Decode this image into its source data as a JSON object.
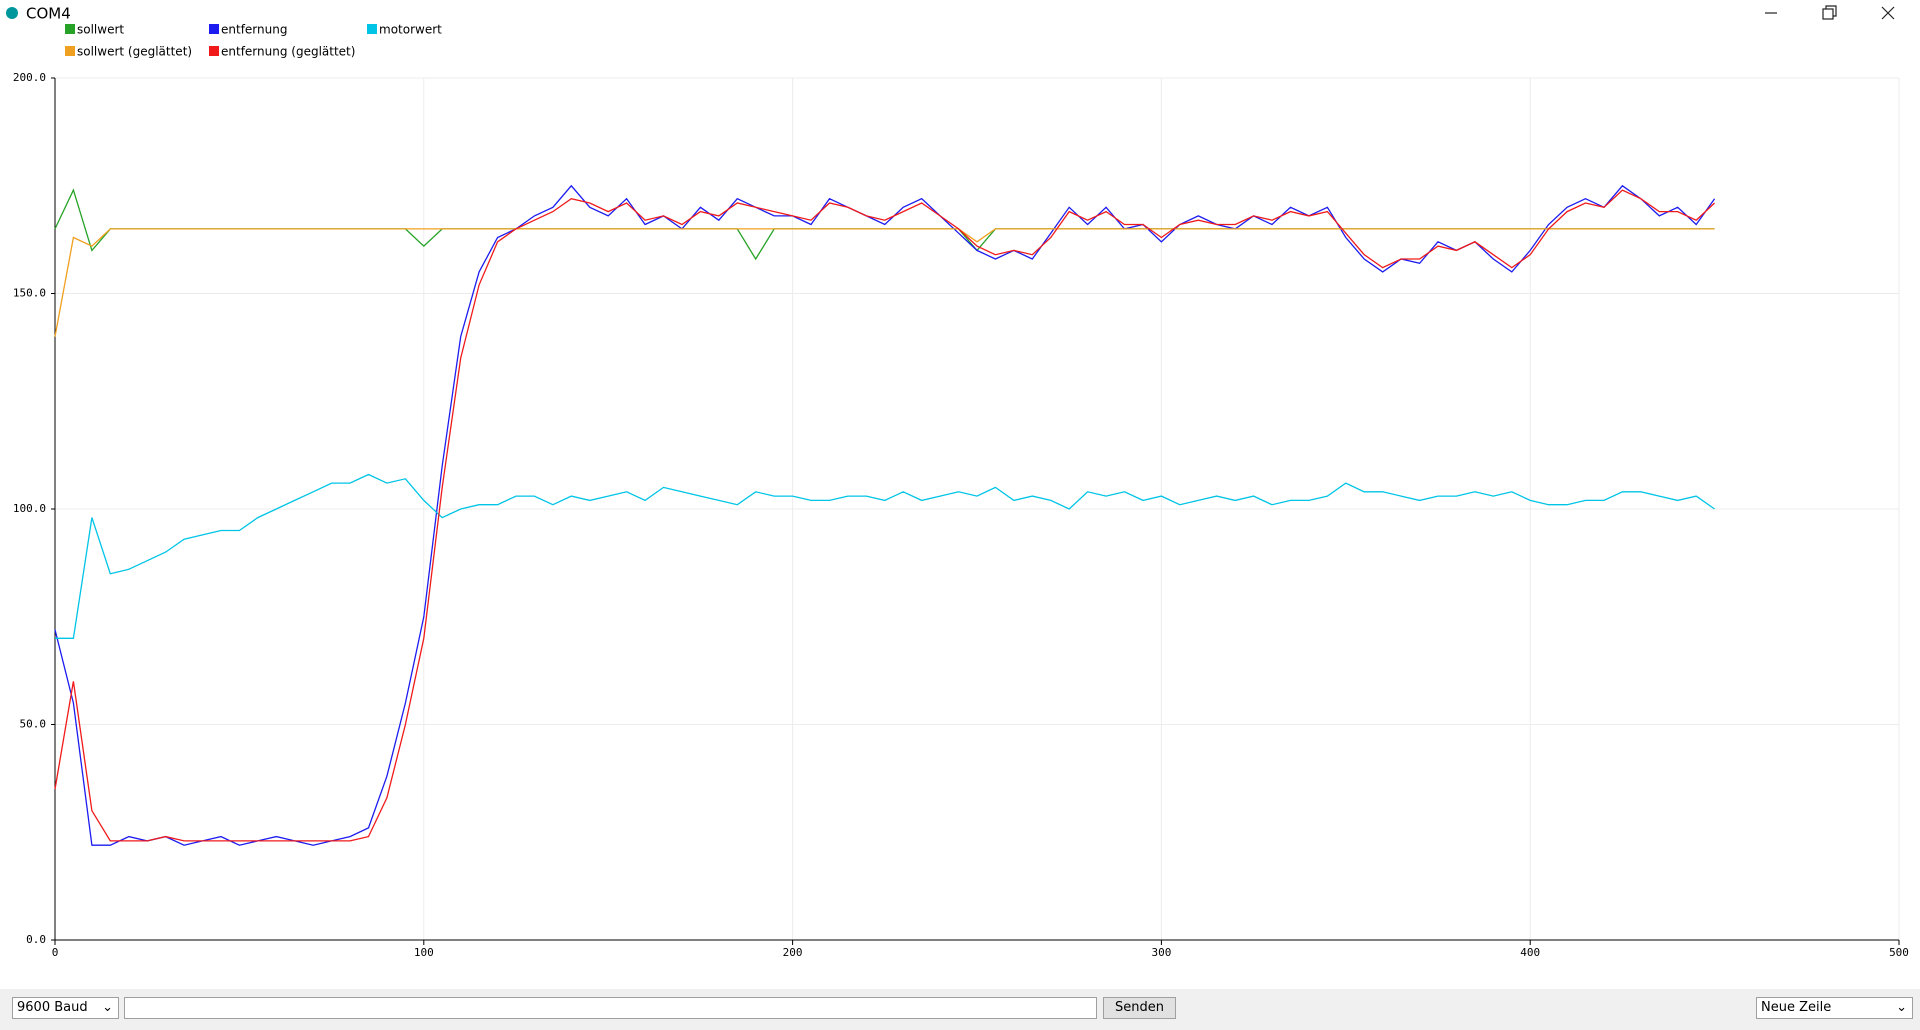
{
  "window": {
    "title": "COM4"
  },
  "controls": {
    "baud": "9600 Baud",
    "send": "Senden",
    "line_ending": "Neue Zeile"
  },
  "chart_data": {
    "type": "line",
    "x": [
      0,
      5,
      10,
      15,
      20,
      25,
      30,
      35,
      40,
      45,
      50,
      55,
      60,
      65,
      70,
      75,
      80,
      85,
      90,
      95,
      100,
      105,
      110,
      115,
      120,
      125,
      130,
      135,
      140,
      145,
      150,
      155,
      160,
      165,
      170,
      175,
      180,
      185,
      190,
      195,
      200,
      205,
      210,
      215,
      220,
      225,
      230,
      235,
      240,
      245,
      250,
      255,
      260,
      265,
      270,
      275,
      280,
      285,
      290,
      295,
      300,
      305,
      310,
      315,
      320,
      325,
      330,
      335,
      340,
      345,
      350,
      355,
      360,
      365,
      370,
      375,
      380,
      385,
      390,
      395,
      400,
      405,
      410,
      415,
      420,
      425,
      430,
      435,
      440,
      445,
      450
    ],
    "series": [
      {
        "name": "sollwert",
        "color": "#26a326",
        "values": [
          165,
          174,
          160,
          165,
          165,
          165,
          165,
          165,
          165,
          165,
          165,
          165,
          165,
          165,
          165,
          165,
          165,
          165,
          165,
          165,
          161,
          165,
          165,
          165,
          165,
          165,
          165,
          165,
          165,
          165,
          165,
          165,
          165,
          165,
          165,
          165,
          165,
          165,
          158,
          165,
          165,
          165,
          165,
          165,
          165,
          165,
          165,
          165,
          165,
          165,
          160,
          165,
          165,
          165,
          165,
          165,
          165,
          165,
          165,
          165,
          165,
          165,
          165,
          165,
          165,
          165,
          165,
          165,
          165,
          165,
          165,
          165,
          165,
          165,
          165,
          165,
          165,
          165,
          165,
          165,
          165,
          165,
          165,
          165,
          165,
          165,
          165,
          165,
          165,
          165,
          165
        ]
      },
      {
        "name": "entfernung",
        "color": "#1c1cf0",
        "values": [
          72,
          55,
          22,
          22,
          24,
          23,
          24,
          22,
          23,
          24,
          22,
          23,
          24,
          23,
          22,
          23,
          24,
          26,
          38,
          55,
          75,
          110,
          140,
          155,
          163,
          165,
          168,
          170,
          175,
          170,
          168,
          172,
          166,
          168,
          165,
          170,
          167,
          172,
          170,
          168,
          168,
          166,
          172,
          170,
          168,
          166,
          170,
          172,
          168,
          164,
          160,
          158,
          160,
          158,
          164,
          170,
          166,
          170,
          165,
          166,
          162,
          166,
          168,
          166,
          165,
          168,
          166,
          170,
          168,
          170,
          163,
          158,
          155,
          158,
          157,
          162,
          160,
          162,
          158,
          155,
          160,
          166,
          170,
          172,
          170,
          175,
          172,
          168,
          170,
          166,
          172
        ]
      },
      {
        "name": "motorwert",
        "color": "#00c4e6",
        "values": [
          70,
          70,
          98,
          85,
          86,
          88,
          90,
          93,
          94,
          95,
          95,
          98,
          100,
          102,
          104,
          106,
          106,
          108,
          106,
          107,
          102,
          98,
          100,
          101,
          101,
          103,
          103,
          101,
          103,
          102,
          103,
          104,
          102,
          105,
          104,
          103,
          102,
          101,
          104,
          103,
          103,
          102,
          102,
          103,
          103,
          102,
          104,
          102,
          103,
          104,
          103,
          105,
          102,
          103,
          102,
          100,
          104,
          103,
          104,
          102,
          103,
          101,
          102,
          103,
          102,
          103,
          101,
          102,
          102,
          103,
          106,
          104,
          104,
          103,
          102,
          103,
          103,
          104,
          103,
          104,
          102,
          101,
          101,
          102,
          102,
          104,
          104,
          103,
          102,
          103,
          100
        ]
      },
      {
        "name": "sollwert (geglättet)",
        "color": "#f0a020",
        "values": [
          140,
          163,
          161,
          165,
          165,
          165,
          165,
          165,
          165,
          165,
          165,
          165,
          165,
          165,
          165,
          165,
          165,
          165,
          165,
          165,
          165,
          165,
          165,
          165,
          165,
          165,
          165,
          165,
          165,
          165,
          165,
          165,
          165,
          165,
          165,
          165,
          165,
          165,
          165,
          165,
          165,
          165,
          165,
          165,
          165,
          165,
          165,
          165,
          165,
          165,
          162,
          165,
          165,
          165,
          165,
          165,
          165,
          165,
          165,
          165,
          165,
          165,
          165,
          165,
          165,
          165,
          165,
          165,
          165,
          165,
          165,
          165,
          165,
          165,
          165,
          165,
          165,
          165,
          165,
          165,
          165,
          165,
          165,
          165,
          165,
          165,
          165,
          165,
          165,
          165,
          165
        ]
      },
      {
        "name": "entfernung (geglättet)",
        "color": "#f01a1a",
        "values": [
          35,
          60,
          30,
          23,
          23,
          23,
          24,
          23,
          23,
          23,
          23,
          23,
          23,
          23,
          23,
          23,
          23,
          24,
          33,
          50,
          70,
          105,
          135,
          152,
          162,
          165,
          167,
          169,
          172,
          171,
          169,
          171,
          167,
          168,
          166,
          169,
          168,
          171,
          170,
          169,
          168,
          167,
          171,
          170,
          168,
          167,
          169,
          171,
          168,
          165,
          161,
          159,
          160,
          159,
          163,
          169,
          167,
          169,
          166,
          166,
          163,
          166,
          167,
          166,
          166,
          168,
          167,
          169,
          168,
          169,
          164,
          159,
          156,
          158,
          158,
          161,
          160,
          162,
          159,
          156,
          159,
          165,
          169,
          171,
          170,
          174,
          172,
          169,
          169,
          167,
          171
        ]
      }
    ],
    "xlim": [
      0,
      500
    ],
    "xticks": [
      0,
      100,
      200,
      300,
      400,
      500
    ],
    "ylim": [
      0,
      200
    ],
    "yticks": [
      {
        "value": 0,
        "label": "0.0"
      },
      {
        "value": 50,
        "label": "50.0"
      },
      {
        "value": 100,
        "label": "100.0"
      },
      {
        "value": 150,
        "label": "150.0"
      },
      {
        "value": 200,
        "label": "200.0"
      }
    ],
    "grid": true
  }
}
